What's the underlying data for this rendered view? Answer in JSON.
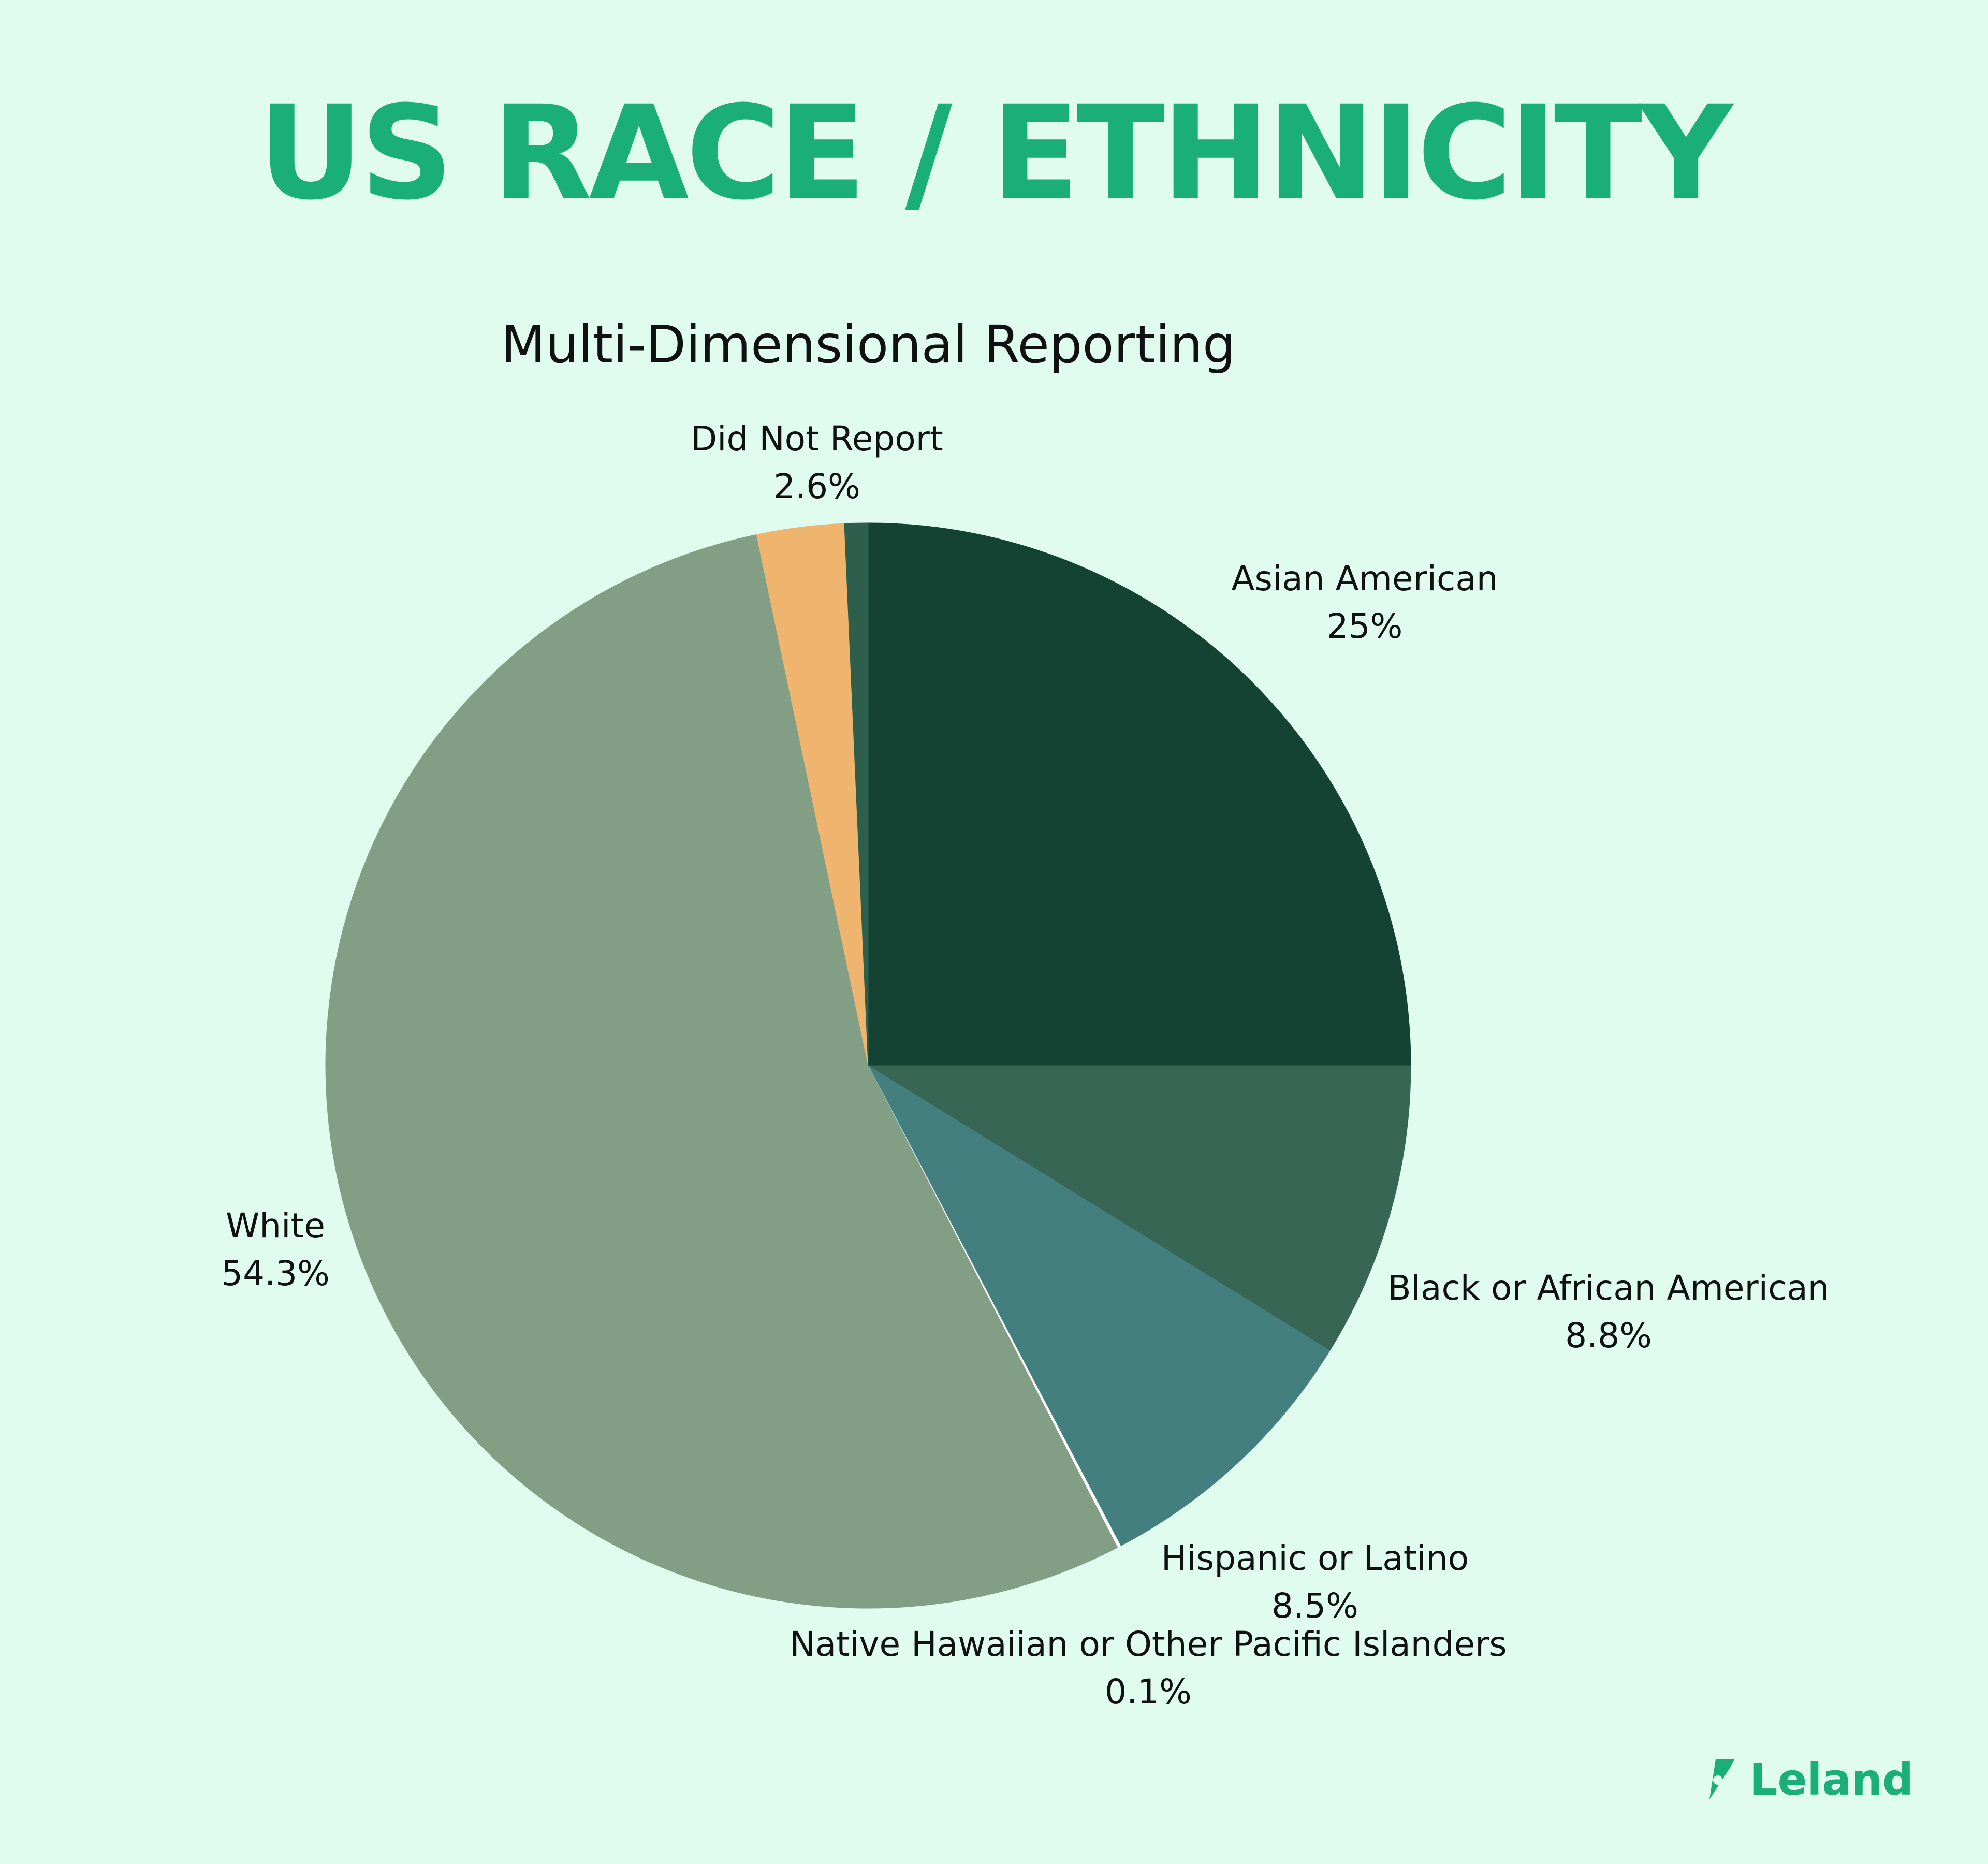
{
  "header": {
    "title": "US RACE / ETHNICITY",
    "title_color": "#1aaf78"
  },
  "brand": {
    "name": "Leland",
    "color": "#1aaf78",
    "icon": "leland-logo-icon"
  },
  "chart_data": {
    "type": "pie",
    "title": "Multi-Dimensional Reporting",
    "start_angle_deg": 0,
    "direction": "clockwise",
    "labels_on_chart": true,
    "slices": [
      {
        "label": "Asian American",
        "value_label": "25%",
        "value": 25.0,
        "color": "#144333"
      },
      {
        "label": "Black or African American",
        "value_label": "8.8%",
        "value": 8.8,
        "color": "#386655"
      },
      {
        "label": "Hispanic or Latino",
        "value_label": "8.5%",
        "value": 8.5,
        "color": "#427f7e"
      },
      {
        "label": "Native Hawaiian or Other Pacific Islanders",
        "value_label": "0.1%",
        "value": 0.1,
        "color": "#ffffff"
      },
      {
        "label": "White",
        "value_label": "54.3%",
        "value": 54.3,
        "color": "#829f86"
      },
      {
        "label": "Did Not Report",
        "value_label": "2.6%",
        "value": 2.6,
        "color": "#efb56e"
      },
      {
        "label": "",
        "value_label": "",
        "value": 0.7,
        "color": "#2e5f4d"
      }
    ]
  }
}
